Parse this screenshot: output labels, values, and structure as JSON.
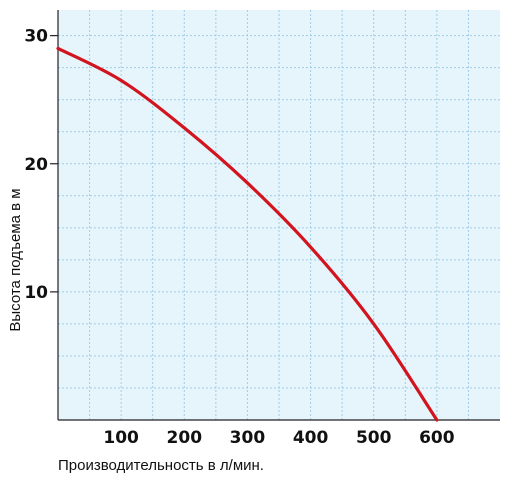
{
  "chart_data": {
    "type": "line",
    "title": "",
    "xlabel": "Производительность в л/мин.",
    "ylabel": "Высота подъема в м",
    "xlim": [
      0,
      700
    ],
    "ylim": [
      0,
      32
    ],
    "x_ticks": [
      100,
      200,
      300,
      400,
      500,
      600
    ],
    "x_tick_labels": [
      "100",
      "200",
      "300",
      "400",
      "500",
      "600"
    ],
    "y_ticks": [
      10,
      20,
      30
    ],
    "y_tick_labels": [
      "10",
      "20",
      "30"
    ],
    "grid": true,
    "series": [
      {
        "x": [
          0,
          100,
          200,
          300,
          400,
          500,
          600
        ],
        "y": [
          29,
          26.5,
          22.8,
          18.5,
          13.5,
          7.5,
          0
        ]
      }
    ],
    "colors": {
      "background": "#e6f4fc",
      "grid": "#9fcde6",
      "line": "#d2141e",
      "axis": "#222222"
    }
  }
}
